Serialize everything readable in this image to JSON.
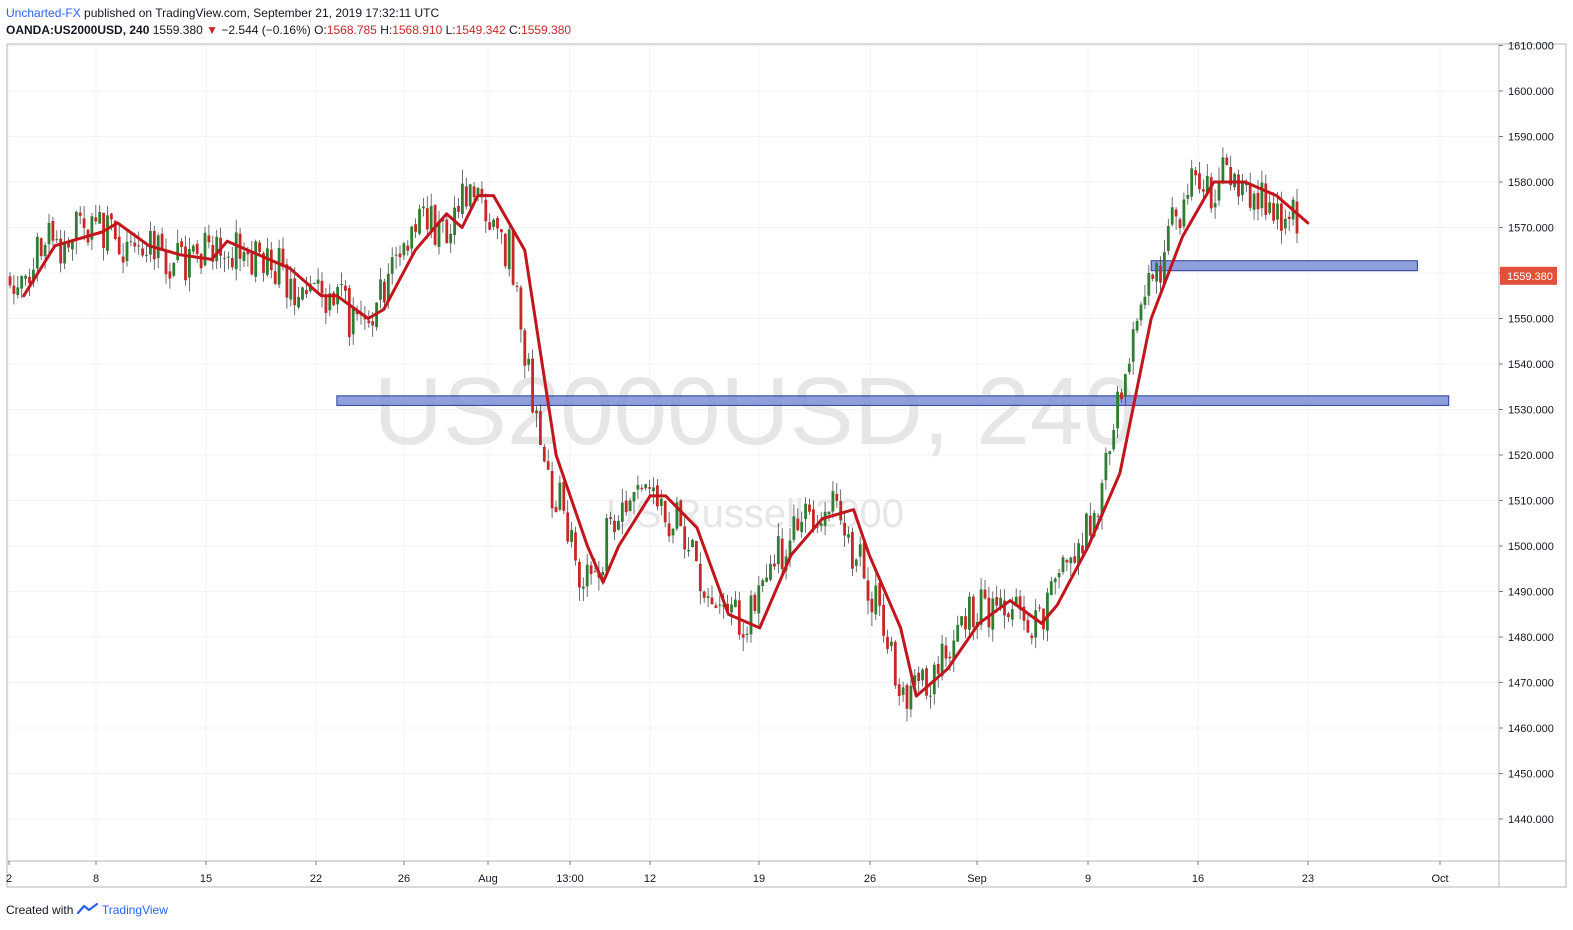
{
  "header": {
    "author": "Uncharted-FX",
    "published_text": "published on TradingView.com, September 21, 2019 17:32:11 UTC",
    "symbol": "OANDA:US2000USD, 240",
    "last": "1559.380",
    "change_arrow": "▼",
    "change": "−2.544 (−0.16%)",
    "o_label": "O:",
    "o_value": "1568.785",
    "h_label": "H:",
    "h_value": "1568.910",
    "l_label": "L:",
    "l_value": "1549.342",
    "c_label": "C:",
    "c_value": "1559.380"
  },
  "watermark": {
    "symbol": "US2000USD, 240",
    "description": "US Russell 2000"
  },
  "footer": {
    "created_with": "Created with",
    "brand": "TradingView"
  },
  "colors": {
    "up": "#2e7d32",
    "down": "#c62828",
    "ma": "#c0161c",
    "zone_fill": "#7b8fd6",
    "zone_stroke": "#2b3a99",
    "badge": "#e0503a"
  },
  "chart_data": {
    "type": "candlestick",
    "title": "",
    "last_price_label": "1559.380",
    "y_ticks": [
      "1610.000",
      "1600.000",
      "1590.000",
      "1580.000",
      "1570.000",
      "1560.000",
      "1550.000",
      "1540.000",
      "1530.000",
      "1520.000",
      "1510.000",
      "1500.000",
      "1490.000",
      "1480.000",
      "1470.000",
      "1460.000",
      "1450.000",
      "1440.000"
    ],
    "ylim": [
      1430,
      1611
    ],
    "x_ticks": [
      "2",
      "8",
      "15",
      "22",
      "26",
      "Aug",
      "13:00",
      "12",
      "19",
      "26",
      "Sep",
      "9",
      "16",
      "23",
      "Oct"
    ],
    "grid": true,
    "zones": [
      {
        "low": 1530.9,
        "high": 1533.0,
        "from": "Jul 22",
        "to": "Oct 1"
      },
      {
        "low": 1560.5,
        "high": 1562.7,
        "from": "Sep 12",
        "to": "Sep 29"
      }
    ],
    "ma_series": [
      {
        "x": "Jul 2",
        "y": 1555
      },
      {
        "x": "Jul 4",
        "y": 1566
      },
      {
        "x": "Jul 7",
        "y": 1569
      },
      {
        "x": "Jul 8",
        "y": 1571
      },
      {
        "x": "Jul 10",
        "y": 1566
      },
      {
        "x": "Jul 12",
        "y": 1564
      },
      {
        "x": "Jul 14",
        "y": 1563
      },
      {
        "x": "Jul 15",
        "y": 1567
      },
      {
        "x": "Jul 17",
        "y": 1564
      },
      {
        "x": "Jul 19",
        "y": 1561
      },
      {
        "x": "Jul 21",
        "y": 1555
      },
      {
        "x": "Jul 22",
        "y": 1555
      },
      {
        "x": "Jul 24",
        "y": 1550
      },
      {
        "x": "Jul 25",
        "y": 1552
      },
      {
        "x": "Jul 27",
        "y": 1565
      },
      {
        "x": "Jul 29",
        "y": 1573
      },
      {
        "x": "Jul 30",
        "y": 1570
      },
      {
        "x": "Jul 31",
        "y": 1577
      },
      {
        "x": "Aug 1",
        "y": 1577
      },
      {
        "x": "Aug 3",
        "y": 1565
      },
      {
        "x": "Aug 5",
        "y": 1520
      },
      {
        "x": "Aug 7",
        "y": 1500
      },
      {
        "x": "Aug 8",
        "y": 1492
      },
      {
        "x": "Aug 9",
        "y": 1500
      },
      {
        "x": "Aug 11",
        "y": 1511
      },
      {
        "x": "Aug 12",
        "y": 1511
      },
      {
        "x": "Aug 14",
        "y": 1504
      },
      {
        "x": "Aug 16",
        "y": 1485
      },
      {
        "x": "Aug 18",
        "y": 1482
      },
      {
        "x": "Aug 20",
        "y": 1498
      },
      {
        "x": "Aug 22",
        "y": 1506
      },
      {
        "x": "Aug 24",
        "y": 1508
      },
      {
        "x": "Aug 25",
        "y": 1498
      },
      {
        "x": "Aug 27",
        "y": 1482
      },
      {
        "x": "Aug 28",
        "y": 1467
      },
      {
        "x": "Aug 30",
        "y": 1473
      },
      {
        "x": "Sep 1",
        "y": 1483
      },
      {
        "x": "Sep 3",
        "y": 1488
      },
      {
        "x": "Sep 5",
        "y": 1483
      },
      {
        "x": "Sep 6",
        "y": 1487
      },
      {
        "x": "Sep 8",
        "y": 1500
      },
      {
        "x": "Sep 10",
        "y": 1516
      },
      {
        "x": "Sep 12",
        "y": 1550
      },
      {
        "x": "Sep 14",
        "y": 1568
      },
      {
        "x": "Sep 16",
        "y": 1580
      },
      {
        "x": "Sep 18",
        "y": 1580
      },
      {
        "x": "Sep 20",
        "y": 1577
      },
      {
        "x": "Sep 22",
        "y": 1571
      }
    ]
  }
}
